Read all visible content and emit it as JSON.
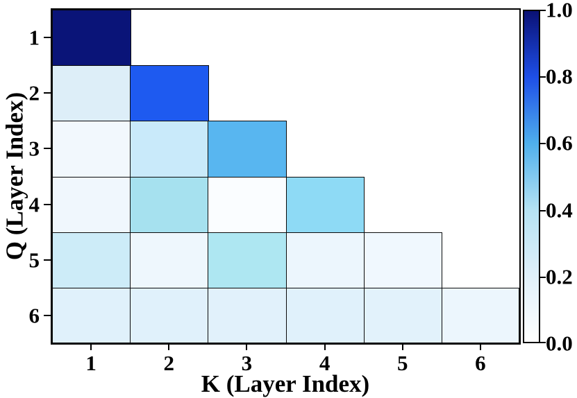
{
  "chart_data": {
    "type": "heatmap",
    "title": "",
    "xlabel": "K (Layer Index)",
    "ylabel": "Q (Layer Index)",
    "x_tick_labels": [
      "1",
      "2",
      "3",
      "4",
      "5",
      "6"
    ],
    "y_tick_labels": [
      "1",
      "2",
      "3",
      "4",
      "5",
      "6"
    ],
    "grid": false,
    "shape": "lower-triangular",
    "values": [
      [
        1.0,
        null,
        null,
        null,
        null,
        null
      ],
      [
        0.2,
        0.78,
        null,
        null,
        null,
        null
      ],
      [
        0.07,
        0.3,
        0.6,
        null,
        null,
        null
      ],
      [
        0.08,
        0.42,
        0.02,
        0.48,
        null,
        null
      ],
      [
        0.26,
        0.09,
        0.38,
        0.1,
        0.08,
        null
      ],
      [
        0.16,
        0.16,
        0.15,
        0.16,
        0.15,
        0.1
      ]
    ],
    "cell_colors": [
      [
        "#0a1478",
        null,
        null,
        null,
        null,
        null
      ],
      [
        "#ddeef8",
        "#1e5af0",
        null,
        null,
        null,
        null
      ],
      [
        "#f2f8fd",
        "#c9eafa",
        "#58b6f0",
        null,
        null,
        null
      ],
      [
        "#f0f7fd",
        "#a6e1ef",
        "#fafdff",
        "#8edaf5",
        null,
        null
      ],
      [
        "#cdecf8",
        "#eef7fd",
        "#aee7f2",
        "#ecf6fd",
        "#f0f8fe",
        null
      ],
      [
        "#e0f1fb",
        "#e0f1fb",
        "#e1f1fb",
        "#e0f1fb",
        "#e2f2fb",
        "#ecf6fd"
      ]
    ],
    "cell_border_color": "#0a0a0a",
    "colorbar": {
      "min": 0.0,
      "max": 1.0,
      "tick_labels": [
        "1.0",
        "0.8",
        "0.6",
        "0.4",
        "0.2",
        "0.0"
      ],
      "tick_values": [
        1.0,
        0.8,
        0.6,
        0.4,
        0.2,
        0.0
      ],
      "position": "right",
      "gradient_stops": [
        {
          "pos": 0.0,
          "color": "#ffffff"
        },
        {
          "pos": 0.2,
          "color": "#e0f0fa"
        },
        {
          "pos": 0.4,
          "color": "#b5e2f3"
        },
        {
          "pos": 0.6,
          "color": "#4fafec"
        },
        {
          "pos": 0.8,
          "color": "#1e4fe8"
        },
        {
          "pos": 1.0,
          "color": "#0a1175"
        }
      ]
    }
  }
}
